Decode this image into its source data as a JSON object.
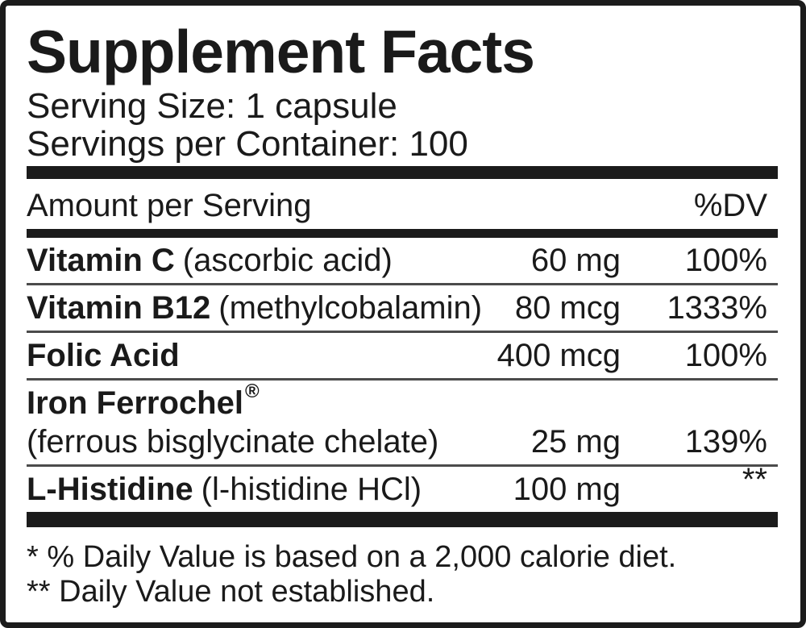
{
  "colors": {
    "ink": "#1a1a1a",
    "bar": "#1b1b1b",
    "separator": "#4b4b4b",
    "background": "#ffffff"
  },
  "label": {
    "title": "Supplement Facts",
    "serving_size": "Serving Size: 1 capsule",
    "servings_per_container": "Servings per Container: 100",
    "columns": {
      "amount_header": "Amount per Serving",
      "dv_header": "%DV"
    },
    "rows": [
      {
        "name": "Vitamin C",
        "detail": "(ascorbic acid)",
        "amount": "60 mg",
        "dv": "100%"
      },
      {
        "name": "Vitamin B12",
        "detail": "(methylcobalamin)",
        "amount": "80 mcg",
        "dv": "1333%"
      },
      {
        "name": "Folic Acid",
        "detail": "",
        "amount": "400 mcg",
        "dv": "100%"
      },
      {
        "name": "Iron Ferrochel",
        "reg_mark": "®",
        "detail": "(ferrous bisglycinate chelate)",
        "amount": "25 mg",
        "dv": "139%"
      },
      {
        "name": "L-Histidine",
        "detail": "(l-histidine HCl)",
        "amount": "100 mg",
        "dv": "**"
      }
    ],
    "footnotes": {
      "daily_value": "* % Daily Value is based on a 2,000 calorie diet.",
      "not_established": "** Daily Value not established."
    }
  }
}
